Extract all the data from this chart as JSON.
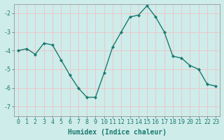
{
  "x": [
    0,
    1,
    2,
    3,
    4,
    5,
    6,
    7,
    8,
    9,
    10,
    11,
    12,
    13,
    14,
    15,
    16,
    17,
    18,
    19,
    20,
    21,
    22,
    23
  ],
  "y": [
    -4.0,
    -3.9,
    -4.2,
    -3.6,
    -3.7,
    -4.5,
    -5.3,
    -6.0,
    -6.5,
    -6.5,
    -5.2,
    -3.8,
    -3.0,
    -2.2,
    -2.1,
    -1.6,
    -2.2,
    -3.0,
    -4.3,
    -4.4,
    -4.8,
    -5.0,
    -5.8,
    -5.9
  ],
  "line_color": "#1a7a6e",
  "marker": "D",
  "marker_size": 2.0,
  "bg_color": "#ceecea",
  "grid_color": "#e8c8c8",
  "xlabel": "Humidex (Indice chaleur)",
  "xlim": [
    -0.5,
    23.5
  ],
  "ylim": [
    -7.5,
    -1.5
  ],
  "yticks": [
    -7,
    -6,
    -5,
    -4,
    -3,
    -2
  ],
  "xtick_labels": [
    "0",
    "1",
    "2",
    "3",
    "4",
    "5",
    "6",
    "7",
    "8",
    "9",
    "10",
    "11",
    "12",
    "13",
    "14",
    "15",
    "16",
    "17",
    "18",
    "19",
    "20",
    "21",
    "22",
    "23"
  ],
  "label_fontsize": 7,
  "tick_fontsize": 6,
  "tick_color": "#1a7a6e",
  "spine_color": "#888888"
}
